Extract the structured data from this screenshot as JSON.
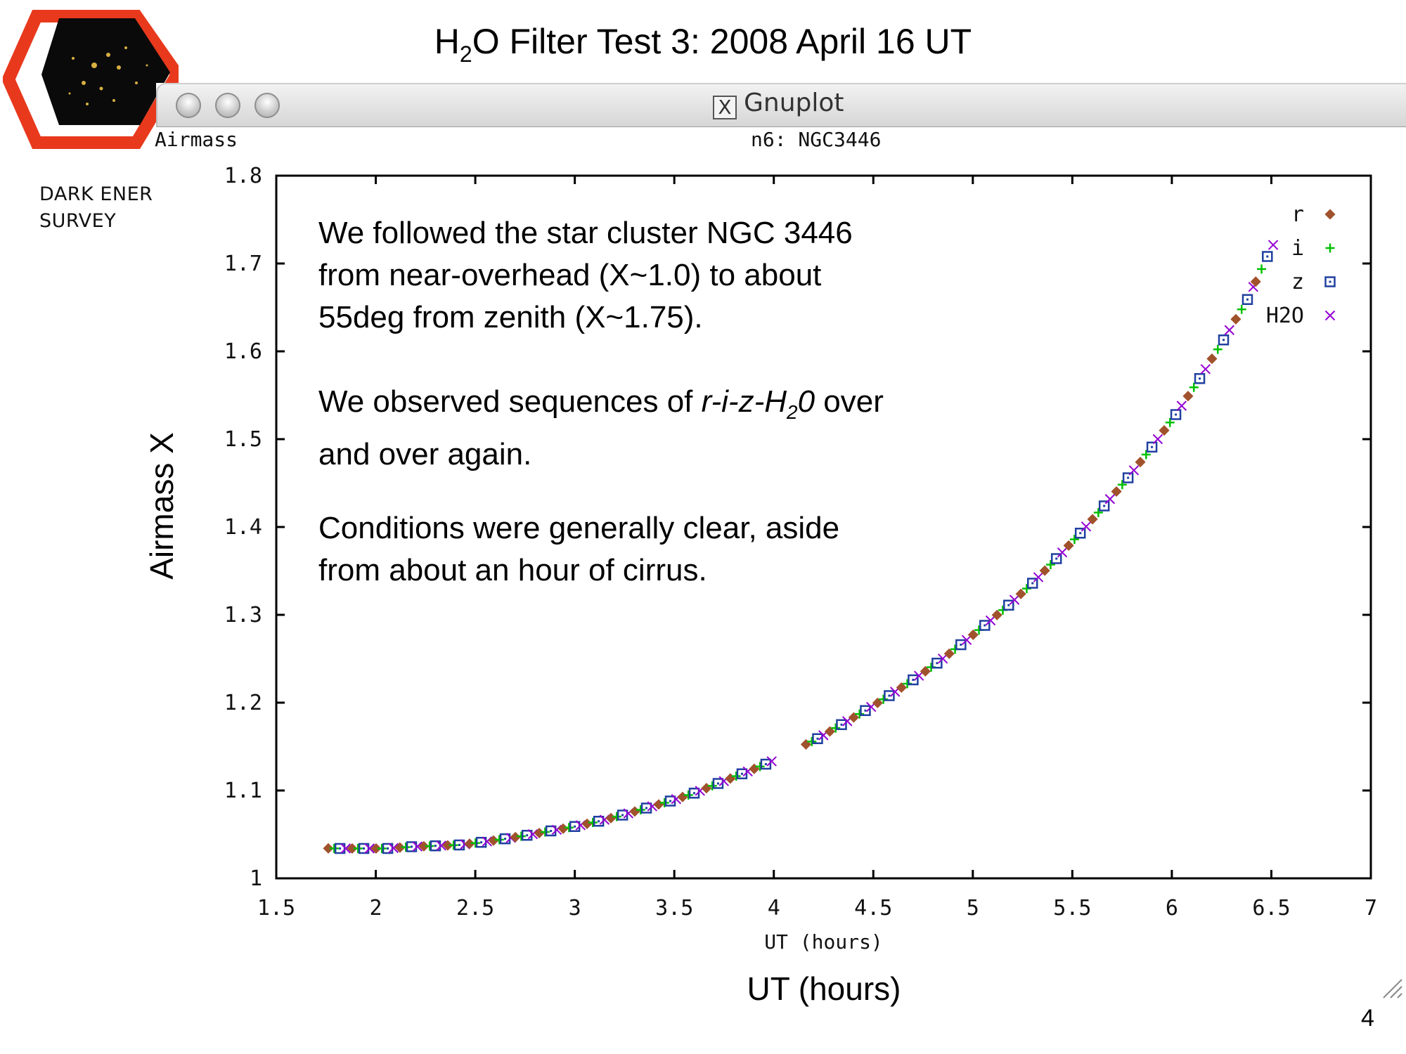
{
  "slide": {
    "title_pre": "H",
    "title_sub": "2",
    "title_post": "O Filter Test 3:  2008 April 16 UT",
    "page_number": "4",
    "y_axis_label": "Airmass X",
    "x_axis_label": "UT (hours)"
  },
  "logo": {
    "line1": "DARK ENER",
    "line2": "SURVEY",
    "accent_color": "#e8391d"
  },
  "window": {
    "title": "Gnuplot",
    "x_icon": "X",
    "plot_label_left": "Airmass",
    "plot_label_center": "n6:  NGC3446"
  },
  "annotation": {
    "p1_l1": "We followed the star cluster NGC 3446",
    "p1_l2": "from near-overhead (X~1.0) to about",
    "p1_l3": "55deg from zenith (X~1.75).",
    "p2_l1_pre": "We observed sequences of ",
    "p2_l1_em_pre": "r-i-z-H",
    "p2_l1_em_sub": "2",
    "p2_l1_em_post": "0",
    "p2_l1_post": " over",
    "p2_l2": "and over again.",
    "p3_l1": "Conditions were generally clear, aside",
    "p3_l2": "from about an hour of cirrus."
  },
  "chart_data": {
    "type": "scatter",
    "xlabel": "UT (hours)",
    "ylabel": "Airmass",
    "xlim": [
      1.5,
      7
    ],
    "ylim": [
      1,
      1.8
    ],
    "xticks": [
      "1.5",
      "2",
      "2.5",
      "3",
      "3.5",
      "4",
      "4.5",
      "5",
      "5.5",
      "6",
      "6.5",
      "7"
    ],
    "yticks": [
      "1",
      "1.1",
      "1.2",
      "1.3",
      "1.4",
      "1.5",
      "1.6",
      "1.7",
      "1.8"
    ],
    "grid": false,
    "legend_position": "top-right",
    "series": [
      {
        "name": "r",
        "color": "#a0522d",
        "marker": "diamond"
      },
      {
        "name": "i",
        "color": "#00c000",
        "marker": "plus"
      },
      {
        "name": "z",
        "color": "#2040a0",
        "marker": "square"
      },
      {
        "name": "H2O",
        "color": "#9400d3",
        "marker": "cross"
      }
    ],
    "sequence_gap_hours": [
      3.98,
      4.15
    ],
    "sequence_spacing_hours": 0.117,
    "z_points": [
      [
        1.82,
        1.034
      ],
      [
        1.94,
        1.034
      ],
      [
        2.06,
        1.034
      ],
      [
        2.18,
        1.036
      ],
      [
        2.3,
        1.037
      ],
      [
        2.42,
        1.038
      ],
      [
        2.53,
        1.041
      ],
      [
        2.65,
        1.045
      ],
      [
        2.76,
        1.049
      ],
      [
        2.88,
        1.054
      ],
      [
        3.0,
        1.059
      ],
      [
        3.12,
        1.065
      ],
      [
        3.24,
        1.072
      ],
      [
        3.36,
        1.08
      ],
      [
        3.48,
        1.088
      ],
      [
        3.6,
        1.097
      ],
      [
        3.72,
        1.108
      ],
      [
        3.84,
        1.119
      ],
      [
        3.96,
        1.13
      ],
      [
        4.22,
        1.159
      ],
      [
        4.34,
        1.175
      ],
      [
        4.46,
        1.191
      ],
      [
        4.58,
        1.208
      ],
      [
        4.7,
        1.226
      ],
      [
        4.82,
        1.245
      ],
      [
        4.94,
        1.266
      ],
      [
        5.06,
        1.288
      ],
      [
        5.18,
        1.311
      ],
      [
        5.3,
        1.336
      ],
      [
        5.42,
        1.364
      ],
      [
        5.54,
        1.393
      ],
      [
        5.66,
        1.424
      ],
      [
        5.78,
        1.456
      ],
      [
        5.9,
        1.491
      ],
      [
        6.02,
        1.528
      ],
      [
        6.14,
        1.569
      ],
      [
        6.26,
        1.613
      ],
      [
        6.38,
        1.659
      ],
      [
        6.48,
        1.708
      ]
    ]
  }
}
